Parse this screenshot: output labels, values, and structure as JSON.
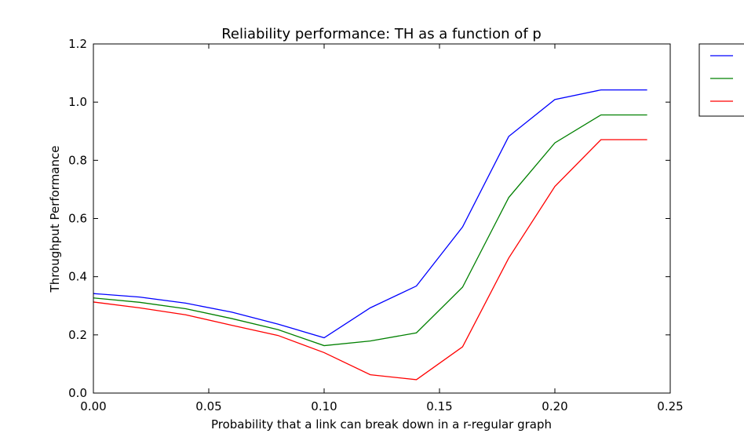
{
  "chart_data": {
    "type": "line",
    "title": "Reliability performance: TH as a function of p",
    "xlabel": "Probability that a link can break down in a r-regular graph",
    "ylabel": "Throughput Performance",
    "xlim": [
      0.0,
      0.25
    ],
    "ylim": [
      0.0,
      1.2
    ],
    "xticks": [
      "0.00",
      "0.05",
      "0.10",
      "0.15",
      "0.20",
      "0.25"
    ],
    "yticks": [
      "0.0",
      "0.2",
      "0.4",
      "0.6",
      "0.8",
      "1.0",
      "1.2"
    ],
    "grid": false,
    "legend_position": "outside top-right",
    "x": [
      0.0,
      0.02,
      0.04,
      0.06,
      0.08,
      0.1,
      0.12,
      0.14,
      0.16,
      0.18,
      0.2,
      0.22,
      0.24
    ],
    "series": [
      {
        "color": "#0000ff",
        "values": [
          0.342,
          0.33,
          0.309,
          0.278,
          0.237,
          0.19,
          0.293,
          0.368,
          0.571,
          0.882,
          1.009,
          1.042,
          1.042
        ]
      },
      {
        "color": "#008000",
        "values": [
          0.327,
          0.312,
          0.29,
          0.256,
          0.218,
          0.163,
          0.179,
          0.207,
          0.364,
          0.672,
          0.86,
          0.956,
          0.956
        ]
      },
      {
        "color": "#ff0000",
        "values": [
          0.313,
          0.293,
          0.269,
          0.233,
          0.198,
          0.139,
          0.063,
          0.046,
          0.159,
          0.464,
          0.71,
          0.871,
          0.871
        ]
      }
    ]
  }
}
